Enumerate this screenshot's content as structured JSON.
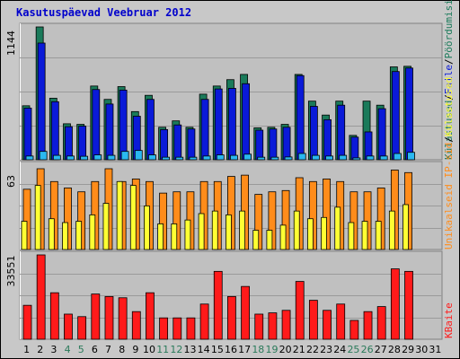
{
  "title": "Kasutuspäevad Veebruar 2012",
  "colors": {
    "visits": "#1a7a5a",
    "pages": "#0a1ad8",
    "files": "#2ab8f0",
    "hits_orange": "#ff8c1a",
    "hits_yellow": "#ffff33",
    "kbytes": "#ff1a1a"
  },
  "chart_data": [
    {
      "type": "bar",
      "panel": "top",
      "ymax_label": "1144",
      "series_labels": [
        "Külastused",
        "/",
        "Faile",
        "/",
        "Pöördumisi"
      ],
      "categories": [
        "1",
        "2",
        "3",
        "4",
        "5",
        "6",
        "7",
        "8",
        "9",
        "10",
        "11",
        "12",
        "13",
        "14",
        "15",
        "16",
        "17",
        "18",
        "19",
        "20",
        "21",
        "22",
        "23",
        "24",
        "25",
        "26",
        "27",
        "28",
        "29",
        "30",
        "31"
      ],
      "series": [
        {
          "name": "Külastused",
          "values": [
            465,
            1144,
            530,
            310,
            305,
            635,
            520,
            630,
            415,
            555,
            280,
            335,
            280,
            565,
            635,
            690,
            735,
            275,
            280,
            305,
            735,
            505,
            385,
            505,
            210,
            505,
            470,
            800,
            805,
            0,
            0
          ]
        },
        {
          "name": "Faile",
          "values": [
            445,
            1005,
            500,
            285,
            290,
            605,
            480,
            600,
            375,
            520,
            260,
            300,
            265,
            520,
            610,
            615,
            655,
            255,
            265,
            280,
            725,
            460,
            345,
            470,
            195,
            240,
            440,
            760,
            790,
            0,
            0
          ]
        },
        {
          "name": "Pöördumisi",
          "values": [
            32,
            72,
            38,
            32,
            30,
            42,
            38,
            72,
            80,
            42,
            22,
            22,
            22,
            32,
            42,
            38,
            48,
            22,
            22,
            24,
            54,
            38,
            32,
            38,
            16,
            32,
            32,
            54,
            64,
            0,
            0
          ]
        }
      ]
    },
    {
      "type": "bar",
      "panel": "middle",
      "ymax_label": "63",
      "series_labels": [
        "Unikaalseid IP-sid",
        "/",
        "Külastused"
      ],
      "categories": [
        "1",
        "2",
        "3",
        "4",
        "5",
        "6",
        "7",
        "8",
        "9",
        "10",
        "11",
        "12",
        "13",
        "14",
        "15",
        "16",
        "17",
        "18",
        "19",
        "20",
        "21",
        "22",
        "23",
        "24",
        "25",
        "26",
        "27",
        "28",
        "29",
        "30",
        "31"
      ],
      "series": [
        {
          "name": "Unikaalseid IP-sid",
          "values": [
            47,
            63,
            53,
            48,
            45,
            53,
            63,
            53,
            55,
            53,
            44,
            45,
            45,
            53,
            53,
            57,
            58,
            43,
            45,
            46,
            56,
            53,
            55,
            53,
            45,
            45,
            48,
            62,
            60,
            0,
            0
          ]
        },
        {
          "name": "Külastused",
          "values": [
            22,
            50,
            24,
            21,
            22,
            27,
            36,
            53,
            50,
            34,
            20,
            20,
            23,
            28,
            30,
            27,
            30,
            15,
            15,
            19,
            30,
            24,
            25,
            33,
            21,
            22,
            22,
            30,
            35,
            0,
            0
          ]
        }
      ]
    },
    {
      "type": "bar",
      "panel": "bottom",
      "ymax_label": "33551",
      "series_labels": [
        "KBaite"
      ],
      "categories": [
        "1",
        "2",
        "3",
        "4",
        "5",
        "6",
        "7",
        "8",
        "9",
        "10",
        "11",
        "12",
        "13",
        "14",
        "15",
        "16",
        "17",
        "18",
        "19",
        "20",
        "21",
        "22",
        "23",
        "24",
        "25",
        "26",
        "27",
        "28",
        "29",
        "30",
        "31"
      ],
      "series": [
        {
          "name": "KBaite",
          "values": [
            13500,
            33551,
            18500,
            10000,
            9000,
            18000,
            17000,
            16500,
            11000,
            18500,
            8500,
            8500,
            8500,
            14000,
            27000,
            17000,
            21000,
            10000,
            10500,
            11500,
            23000,
            15500,
            11500,
            14000,
            7500,
            11000,
            13000,
            28000,
            27000,
            0,
            0
          ]
        }
      ]
    }
  ],
  "xaxis": {
    "labels": [
      "1",
      "2",
      "3",
      "4",
      "5",
      "6",
      "7",
      "8",
      "9",
      "10",
      "11",
      "12",
      "13",
      "14",
      "15",
      "16",
      "17",
      "18",
      "19",
      "20",
      "21",
      "22",
      "23",
      "24",
      "25",
      "26",
      "27",
      "28",
      "29",
      "30",
      "31"
    ],
    "weekend_days": [
      "4",
      "5",
      "11",
      "12",
      "18",
      "19",
      "25",
      "26"
    ],
    "weekday_color": "#000000",
    "weekend_color": "#2a7a5a"
  }
}
